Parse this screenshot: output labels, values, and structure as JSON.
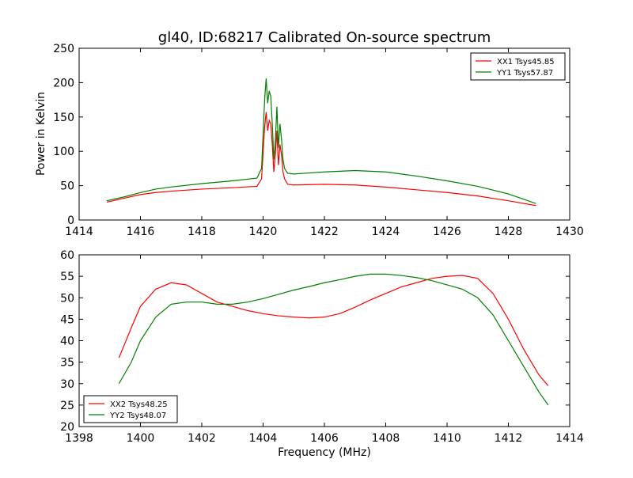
{
  "chart_data": [
    {
      "type": "line",
      "title": "gl40, ID:68217 Calibrated On-source spectrum",
      "xlabel": "",
      "ylabel": "Power in Kelvin",
      "xlim": [
        1414,
        1430
      ],
      "ylim": [
        0,
        250
      ],
      "xticks": [
        "1414",
        "1416",
        "1418",
        "1420",
        "1422",
        "1424",
        "1426",
        "1428",
        "1430"
      ],
      "yticks": [
        "0",
        "50",
        "100",
        "150",
        "200",
        "250"
      ],
      "grid": false,
      "legend_position": "top-right",
      "series": [
        {
          "name": "XX1 Tsys45.85",
          "color": "#ff0000",
          "x": [
            1414.9,
            1415.5,
            1416.0,
            1416.5,
            1417.0,
            1418.0,
            1419.0,
            1419.8,
            1419.95,
            1420.05,
            1420.1,
            1420.15,
            1420.2,
            1420.25,
            1420.3,
            1420.35,
            1420.4,
            1420.45,
            1420.5,
            1420.55,
            1420.6,
            1420.65,
            1420.7,
            1420.8,
            1421.0,
            1422.0,
            1423.0,
            1424.0,
            1425.0,
            1426.0,
            1427.0,
            1428.0,
            1428.9
          ],
          "values": [
            26,
            32,
            37,
            40,
            42,
            45,
            47,
            49,
            60,
            135,
            157,
            130,
            145,
            140,
            110,
            70,
            95,
            130,
            80,
            110,
            95,
            70,
            60,
            52,
            51,
            52,
            51,
            48,
            44,
            40,
            35,
            28,
            21
          ]
        },
        {
          "name": "YY1 Tsys57.87",
          "color": "#008000",
          "x": [
            1414.9,
            1415.5,
            1416.0,
            1416.5,
            1417.0,
            1418.0,
            1419.0,
            1419.8,
            1419.95,
            1420.05,
            1420.1,
            1420.15,
            1420.2,
            1420.25,
            1420.3,
            1420.35,
            1420.4,
            1420.45,
            1420.5,
            1420.55,
            1420.6,
            1420.65,
            1420.7,
            1420.8,
            1421.0,
            1422.0,
            1423.0,
            1424.0,
            1425.0,
            1426.0,
            1427.0,
            1428.0,
            1428.9
          ],
          "values": [
            28,
            34,
            40,
            45,
            48,
            53,
            57,
            61,
            75,
            175,
            206,
            170,
            188,
            180,
            140,
            88,
            115,
            165,
            105,
            140,
            118,
            88,
            75,
            68,
            67,
            70,
            72,
            70,
            64,
            57,
            49,
            38,
            24
          ]
        }
      ]
    },
    {
      "type": "line",
      "title": "",
      "xlabel": "Frequency (MHz)",
      "ylabel": "",
      "xlim": [
        1398,
        1414
      ],
      "ylim": [
        20,
        60
      ],
      "xticks": [
        "1398",
        "1400",
        "1402",
        "1404",
        "1406",
        "1408",
        "1410",
        "1412",
        "1414"
      ],
      "yticks": [
        "20",
        "25",
        "30",
        "35",
        "40",
        "45",
        "50",
        "55",
        "60"
      ],
      "grid": false,
      "legend_position": "bottom-left",
      "series": [
        {
          "name": "XX2 Tsys48.25",
          "color": "#ff0000",
          "x": [
            1399.3,
            1399.7,
            1400.0,
            1400.5,
            1401.0,
            1401.5,
            1402.0,
            1402.5,
            1403.0,
            1403.5,
            1404.0,
            1404.5,
            1405.0,
            1405.5,
            1406.0,
            1406.5,
            1407.0,
            1407.5,
            1408.0,
            1408.5,
            1409.0,
            1409.5,
            1410.0,
            1410.5,
            1411.0,
            1411.5,
            1412.0,
            1412.5,
            1413.0,
            1413.3
          ],
          "values": [
            36,
            43,
            48,
            52,
            53.5,
            53,
            51,
            49,
            48,
            47,
            46.3,
            45.8,
            45.5,
            45.3,
            45.5,
            46.3,
            47.8,
            49.5,
            51,
            52.5,
            53.5,
            54.5,
            55,
            55.2,
            54.5,
            51,
            45,
            38,
            32,
            29.5
          ]
        },
        {
          "name": "YY2 Tsys48.07",
          "color": "#008000",
          "x": [
            1399.3,
            1399.7,
            1400.0,
            1400.5,
            1401.0,
            1401.5,
            1402.0,
            1402.5,
            1403.0,
            1403.5,
            1404.0,
            1404.5,
            1405.0,
            1405.5,
            1406.0,
            1406.5,
            1407.0,
            1407.5,
            1408.0,
            1408.5,
            1409.0,
            1409.5,
            1410.0,
            1410.5,
            1411.0,
            1411.5,
            1412.0,
            1412.5,
            1413.0,
            1413.3
          ],
          "values": [
            30,
            35,
            40,
            45.5,
            48.5,
            49,
            49,
            48.5,
            48.5,
            49,
            49.8,
            50.8,
            51.8,
            52.6,
            53.5,
            54.2,
            55,
            55.5,
            55.5,
            55.2,
            54.7,
            54,
            53,
            52,
            50,
            46,
            40,
            34,
            28,
            25
          ]
        }
      ]
    }
  ]
}
